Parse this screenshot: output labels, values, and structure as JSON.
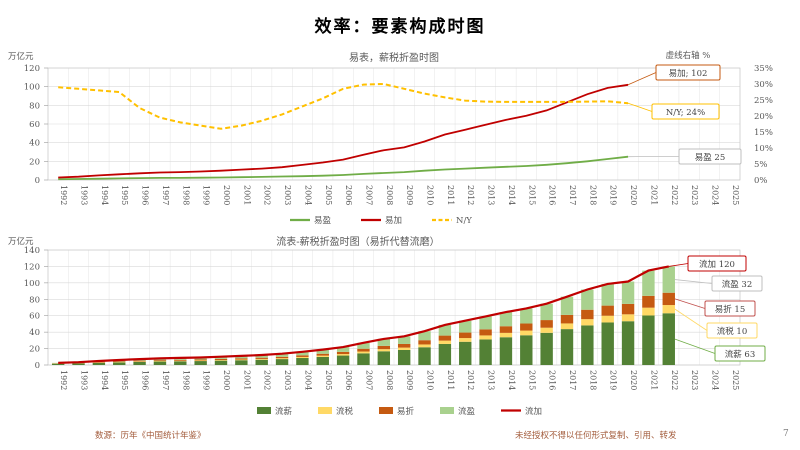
{
  "page": {
    "title": "效率：要素构成时图",
    "footer_source": "数源：历年《中国统计年鉴》",
    "footer_rights": "未经授权不得以任何形式复制、引用、转发",
    "page_number": "7"
  },
  "chart_data": [
    {
      "type": "line",
      "title": "易表，薪税折盈时图",
      "left_axis_label": "万亿元",
      "right_axis_label": "虚线右轴 %",
      "ylim_left": [
        0,
        120
      ],
      "ytick_step_left": 20,
      "ylim_right": [
        0,
        35
      ],
      "ytick_step_right": 5,
      "grid": true,
      "legend_position": "bottom",
      "x": [
        "1992",
        "1993",
        "1994",
        "1995",
        "1996",
        "1997",
        "1998",
        "1999",
        "2000",
        "2001",
        "2002",
        "2003",
        "2004",
        "2005",
        "2006",
        "2007",
        "2008",
        "2009",
        "2010",
        "2011",
        "2012",
        "2013",
        "2014",
        "2015",
        "2016",
        "2017",
        "2018",
        "2019",
        "2020",
        "2021",
        "2022",
        "2023",
        "2024",
        "2025"
      ],
      "series": [
        {
          "name": "易盈",
          "axis": "left",
          "style": "solid",
          "color": "#70ad47",
          "values": [
            0.9,
            1.1,
            1.4,
            1.7,
            2.0,
            2.2,
            2.3,
            2.5,
            2.7,
            3.0,
            3.3,
            3.7,
            4.1,
            4.6,
            5.4,
            6.5,
            7.5,
            8.5,
            10.0,
            11.2,
            12.2,
            13.2,
            14.1,
            15.0,
            16.3,
            18.0,
            20.0,
            22.5,
            25
          ]
        },
        {
          "name": "易加",
          "axis": "left",
          "style": "solid",
          "color": "#c00000",
          "values": [
            2.7,
            3.5,
            4.9,
            6.1,
            7.2,
            8.0,
            8.5,
            9.1,
            10.0,
            11.1,
            12.2,
            13.7,
            16.2,
            18.7,
            21.9,
            27.0,
            31.9,
            34.9,
            41.2,
            48.8,
            53.9,
            59.3,
            64.4,
            68.9,
            74.6,
            83.2,
            91.9,
            98.7,
            102
          ]
        },
        {
          "name": "N/Y",
          "axis": "right",
          "style": "dashed",
          "color": "#ffc000",
          "values": [
            29,
            28.5,
            28,
            27.5,
            22.5,
            19.5,
            18,
            17,
            16,
            17,
            18.5,
            20.5,
            23,
            25.5,
            28.5,
            29.8,
            30,
            28.5,
            27,
            25.8,
            24.8,
            24.5,
            24.4,
            24.4,
            24.4,
            24.4,
            24.5,
            24.6,
            24
          ]
        }
      ],
      "annotations": [
        {
          "text": "易加; 102",
          "border": "#c55a11"
        },
        {
          "text": "N/Y; 24%",
          "border": "#ffc000"
        },
        {
          "text": "易盈 25",
          "border": "#bfbfbf"
        }
      ],
      "legend": [
        "易盈",
        "易加",
        "N/Y"
      ]
    },
    {
      "type": "stacked-bar-line",
      "title": "流表-薪税折盈时图（易折代替流磨）",
      "left_axis_label": "万亿元",
      "ylim_left": [
        0,
        140
      ],
      "ytick_step_left": 20,
      "grid": true,
      "legend_position": "bottom",
      "x": [
        "1992",
        "1993",
        "1994",
        "1995",
        "1996",
        "1997",
        "1998",
        "1999",
        "2000",
        "2001",
        "2002",
        "2003",
        "2004",
        "2005",
        "2006",
        "2007",
        "2008",
        "2009",
        "2010",
        "2011",
        "2012",
        "2013",
        "2014",
        "2015",
        "2016",
        "2017",
        "2018",
        "2019",
        "2020",
        "2021",
        "2022",
        "2023",
        "2024",
        "2025"
      ],
      "bar_series": [
        {
          "name": "流薪",
          "color": "#538135",
          "values": [
            1.4,
            1.8,
            2.6,
            3.2,
            3.8,
            4.2,
            4.5,
            4.8,
            5.3,
            5.8,
            6.4,
            7.2,
            8.5,
            9.8,
            11.5,
            14.2,
            16.7,
            18.3,
            21.6,
            25.6,
            28.3,
            31.1,
            33.8,
            36.2,
            39.2,
            43.7,
            48.2,
            51.8,
            53.3,
            60.3,
            63
          ]
        },
        {
          "name": "流税",
          "color": "#ffd966",
          "values": [
            0.2,
            0.3,
            0.4,
            0.5,
            0.6,
            0.7,
            0.7,
            0.8,
            0.8,
            0.9,
            1.0,
            1.1,
            1.3,
            1.6,
            1.8,
            2.2,
            2.6,
            2.9,
            3.4,
            4.1,
            4.5,
            4.9,
            5.3,
            5.7,
            6.2,
            6.9,
            7.6,
            8.2,
            8.4,
            9.5,
            10
          ]
        },
        {
          "name": "易折",
          "color": "#c55a11",
          "values": [
            0.3,
            0.4,
            0.6,
            0.8,
            0.9,
            1.0,
            1.1,
            1.1,
            1.3,
            1.4,
            1.5,
            1.7,
            2.0,
            2.3,
            2.7,
            3.4,
            4.0,
            4.4,
            5.2,
            6.1,
            6.7,
            7.4,
            8.1,
            8.6,
            9.3,
            10.4,
            11.5,
            12.3,
            12.7,
            14.4,
            15
          ]
        },
        {
          "name": "流盈",
          "color": "#a9d18e",
          "values": [
            0.7,
            0.9,
            1.3,
            1.6,
            1.9,
            2.1,
            2.3,
            2.4,
            2.7,
            3.0,
            3.3,
            3.7,
            4.3,
            5.0,
            5.8,
            7.2,
            8.5,
            9.3,
            11.0,
            13.0,
            14.4,
            15.8,
            17.2,
            18.4,
            19.9,
            22.2,
            24.6,
            26.4,
            27.2,
            30.7,
            32
          ]
        }
      ],
      "line_series": {
        "name": "流加",
        "color": "#c00000"
      },
      "annotations": [
        {
          "text": "流加 120",
          "border": "#c00000"
        },
        {
          "text": "流盈 32",
          "border": "#bfbfbf"
        },
        {
          "text": "易折 15",
          "border": "#c0504d"
        },
        {
          "text": "流税 10",
          "border": "#ffd966"
        },
        {
          "text": "流薪 63",
          "border": "#70ad47"
        }
      ],
      "legend": [
        "流薪",
        "流税",
        "易折",
        "流盈",
        "流加"
      ]
    }
  ]
}
